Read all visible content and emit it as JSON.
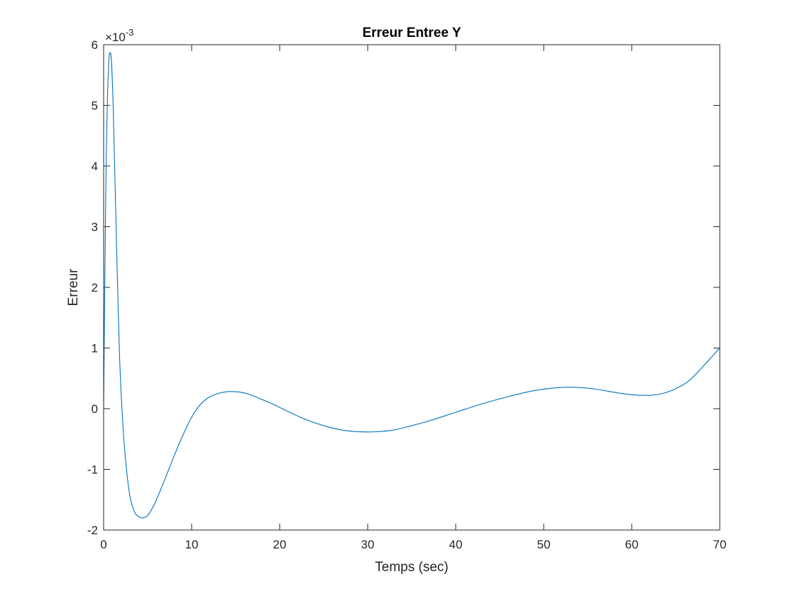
{
  "chart_data": {
    "type": "line",
    "title": "Erreur Entree Y",
    "xlabel": "Temps (sec)",
    "ylabel": "Erreur",
    "xlim": [
      0,
      70
    ],
    "ylim": [
      -2,
      6
    ],
    "y_multiplier": "×10",
    "y_exponent": "-3",
    "xticks": [
      "0",
      "10",
      "20",
      "30",
      "40",
      "50",
      "60",
      "70"
    ],
    "yticks": [
      "-2",
      "-1",
      "0",
      "1",
      "2",
      "3",
      "4",
      "5",
      "6"
    ],
    "grid": false,
    "line_color": "#0072BD",
    "series": [
      {
        "x": [
          0,
          0.1,
          0.2,
          0.3,
          0.45,
          0.6,
          0.75,
          0.9,
          1.1,
          1.4,
          1.8,
          2.2,
          2.6,
          3.0,
          3.5,
          4.0,
          4.5,
          5.0,
          5.5,
          6.0,
          7.0,
          8.0,
          9.0,
          10.0,
          11.0,
          12.0,
          13.0,
          14.0,
          15.0,
          15.6,
          16.5,
          17.5,
          19.0,
          21.0,
          23.0,
          25.0,
          27.0,
          29.0,
          31.0,
          33.0,
          35.0,
          37.0,
          40.0,
          43.0,
          46.0,
          49.0,
          52.0,
          54.0,
          56.0,
          58.0,
          60.0,
          62.0,
          63.5,
          65.0,
          66.5,
          68.0,
          69.0,
          70.0
        ],
        "y": [
          0,
          1.6,
          3.0,
          4.2,
          5.2,
          5.75,
          5.87,
          5.7,
          4.9,
          3.1,
          0.9,
          -0.3,
          -1.0,
          -1.45,
          -1.7,
          -1.78,
          -1.8,
          -1.76,
          -1.65,
          -1.5,
          -1.15,
          -0.78,
          -0.44,
          -0.14,
          0.07,
          0.19,
          0.25,
          0.28,
          0.28,
          0.27,
          0.24,
          0.18,
          0.09,
          -0.05,
          -0.18,
          -0.28,
          -0.35,
          -0.38,
          -0.38,
          -0.35,
          -0.28,
          -0.2,
          -0.06,
          0.08,
          0.2,
          0.3,
          0.35,
          0.35,
          0.32,
          0.27,
          0.23,
          0.22,
          0.25,
          0.33,
          0.46,
          0.68,
          0.84,
          1.0
        ]
      }
    ]
  }
}
